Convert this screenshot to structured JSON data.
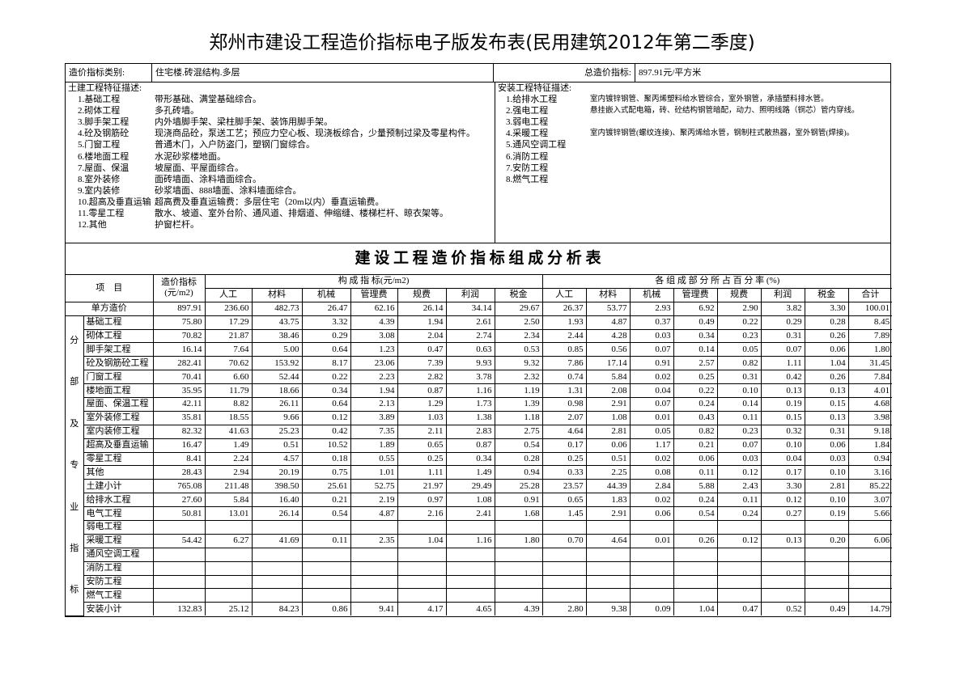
{
  "title": "郑州市建设工程造价指标电子版发布表(民用建筑2012年第二季度)",
  "info": {
    "category_label": "造价指标类别:",
    "category": "住宅楼.砖混结构.多层",
    "total_label": "总造价指标:",
    "total": "897.91元/平方米"
  },
  "civil_features": {
    "heading": "土建工程特征描述:",
    "items": [
      {
        "name": "1.基础工程",
        "desc": "带形基础、满堂基础综合。"
      },
      {
        "name": "2.砌体工程",
        "desc": "多孔砖墙。"
      },
      {
        "name": "3.脚手架工程",
        "desc": "内外墙脚手架、梁柱脚手架、装饰用脚手架。"
      },
      {
        "name": "4.砼及钢筋砼",
        "desc": "现浇商品砼，泵送工艺；预应力空心板、现浇板综合，少量预制过梁及零星构件。"
      },
      {
        "name": "5.门窗工程",
        "desc": "普通木门，入户防盗门，塑钢门窗综合。"
      },
      {
        "name": "6.楼地面工程",
        "desc": "水泥砂浆楼地面。"
      },
      {
        "name": "7.屋面、保温",
        "desc": "坡屋面、平屋面综合。"
      },
      {
        "name": "8.室外装修",
        "desc": "面砖墙面、涂料墙面综合。"
      },
      {
        "name": "9.室内装修",
        "desc": "砂浆墙面、888墙面、涂料墙面综合。"
      },
      {
        "name": "10.超高及垂直运输",
        "desc": "超高费及垂直运输费：多层住宅（20m以内）垂直运输费。"
      },
      {
        "name": "11.零星工程",
        "desc": "散水、坡道、室外台阶、通风道、排烟道、伸缩缝、楼梯栏杆、晾衣架等。"
      },
      {
        "name": "12.其他",
        "desc": "护窗栏杆。"
      }
    ]
  },
  "install_features": {
    "heading": "安装工程特征描述:",
    "items": [
      {
        "name": "1.给排水工程",
        "desc": "室内镀锌钢管、聚丙烯塑料给水管综合，室外钢管，承插塑料排水管。"
      },
      {
        "name": "2.强电工程",
        "desc": "悬挂嵌入式配电箱，砖、砼结构钢管暗配，动力、照明线路（铜芯）管内穿线。"
      },
      {
        "name": "3.弱电工程"
      },
      {
        "name": "4.采暖工程",
        "desc": "室内镀锌钢管(螺纹连接)、聚丙烯给水管，钢制柱式散热器，室外钢管(焊接)。"
      },
      {
        "name": "5.通风空调工程"
      },
      {
        "name": "6.消防工程"
      },
      {
        "name": "7.安防工程"
      },
      {
        "name": "8.燃气工程"
      }
    ]
  },
  "analysis_table": {
    "title": "建 设 工 程 造 价 指 标 组 成 分 析 表",
    "item_header": "项　目",
    "index_header": [
      "造价指标",
      "(元/m2)"
    ],
    "composition_header": "构 成 指 标(元/m2)",
    "percent_header": "各 组 成 部 分 所 占 百 分 率 (%)",
    "composition_columns": [
      "人工",
      "材料",
      "机械",
      "管理费",
      "规费",
      "利润",
      "税金"
    ],
    "percent_columns": [
      "人工",
      "材料",
      "机械",
      "管理费",
      "规费",
      "利润",
      "税金",
      "合计"
    ],
    "side_label": [
      "分",
      "部",
      "及",
      "专",
      "业",
      "指",
      "标"
    ],
    "rows": [
      {
        "name": "单方造价",
        "cells": [
          "897.91",
          "236.60",
          "482.73",
          "26.47",
          "62.16",
          "26.14",
          "34.14",
          "29.67",
          "26.37",
          "53.77",
          "2.93",
          "6.92",
          "2.90",
          "3.82",
          "3.30",
          "100.01"
        ]
      },
      {
        "name": "基础工程",
        "cells": [
          "75.80",
          "17.29",
          "43.75",
          "3.32",
          "4.39",
          "1.94",
          "2.61",
          "2.50",
          "1.93",
          "4.87",
          "0.37",
          "0.49",
          "0.22",
          "0.29",
          "0.28",
          "8.45"
        ]
      },
      {
        "name": "砌体工程",
        "cells": [
          "70.82",
          "21.87",
          "38.46",
          "0.29",
          "3.08",
          "2.04",
          "2.74",
          "2.34",
          "2.44",
          "4.28",
          "0.03",
          "0.34",
          "0.23",
          "0.31",
          "0.26",
          "7.89"
        ]
      },
      {
        "name": "脚手架工程",
        "cells": [
          "16.14",
          "7.64",
          "5.00",
          "0.64",
          "1.23",
          "0.47",
          "0.63",
          "0.53",
          "0.85",
          "0.56",
          "0.07",
          "0.14",
          "0.05",
          "0.07",
          "0.06",
          "1.80"
        ]
      },
      {
        "name": "砼及钢筋砼工程",
        "cells": [
          "282.41",
          "70.62",
          "153.92",
          "8.17",
          "23.06",
          "7.39",
          "9.93",
          "9.32",
          "7.86",
          "17.14",
          "0.91",
          "2.57",
          "0.82",
          "1.11",
          "1.04",
          "31.45"
        ]
      },
      {
        "name": "门窗工程",
        "cells": [
          "70.41",
          "6.60",
          "52.44",
          "0.22",
          "2.23",
          "2.82",
          "3.78",
          "2.32",
          "0.74",
          "5.84",
          "0.02",
          "0.25",
          "0.31",
          "0.42",
          "0.26",
          "7.84"
        ]
      },
      {
        "name": "楼地面工程",
        "cells": [
          "35.95",
          "11.79",
          "18.66",
          "0.34",
          "1.94",
          "0.87",
          "1.16",
          "1.19",
          "1.31",
          "2.08",
          "0.04",
          "0.22",
          "0.10",
          "0.13",
          "0.13",
          "4.01"
        ]
      },
      {
        "name": "屋面、保温工程",
        "cells": [
          "42.11",
          "8.82",
          "26.11",
          "0.64",
          "2.13",
          "1.29",
          "1.73",
          "1.39",
          "0.98",
          "2.91",
          "0.07",
          "0.24",
          "0.14",
          "0.19",
          "0.15",
          "4.68"
        ]
      },
      {
        "name": "室外装修工程",
        "cells": [
          "35.81",
          "18.55",
          "9.66",
          "0.12",
          "3.89",
          "1.03",
          "1.38",
          "1.18",
          "2.07",
          "1.08",
          "0.01",
          "0.43",
          "0.11",
          "0.15",
          "0.13",
          "3.98"
        ]
      },
      {
        "name": "室内装修工程",
        "cells": [
          "82.32",
          "41.63",
          "25.23",
          "0.42",
          "7.35",
          "2.11",
          "2.83",
          "2.75",
          "4.64",
          "2.81",
          "0.05",
          "0.82",
          "0.23",
          "0.32",
          "0.31",
          "9.18"
        ]
      },
      {
        "name": "超高及垂直运输",
        "cells": [
          "16.47",
          "1.49",
          "0.51",
          "10.52",
          "1.89",
          "0.65",
          "0.87",
          "0.54",
          "0.17",
          "0.06",
          "1.17",
          "0.21",
          "0.07",
          "0.10",
          "0.06",
          "1.84"
        ]
      },
      {
        "name": "零星工程",
        "cells": [
          "8.41",
          "2.24",
          "4.57",
          "0.18",
          "0.55",
          "0.25",
          "0.34",
          "0.28",
          "0.25",
          "0.51",
          "0.02",
          "0.06",
          "0.03",
          "0.04",
          "0.03",
          "0.94"
        ]
      },
      {
        "name": "其他",
        "cells": [
          "28.43",
          "2.94",
          "20.19",
          "0.75",
          "1.01",
          "1.11",
          "1.49",
          "0.94",
          "0.33",
          "2.25",
          "0.08",
          "0.11",
          "0.12",
          "0.17",
          "0.10",
          "3.16"
        ]
      },
      {
        "name": "土建小计",
        "cells": [
          "765.08",
          "211.48",
          "398.50",
          "25.61",
          "52.75",
          "21.97",
          "29.49",
          "25.28",
          "23.57",
          "44.39",
          "2.84",
          "5.88",
          "2.43",
          "3.30",
          "2.81",
          "85.22"
        ]
      },
      {
        "name": "给排水工程",
        "cells": [
          "27.60",
          "5.84",
          "16.40",
          "0.21",
          "2.19",
          "0.97",
          "1.08",
          "0.91",
          "0.65",
          "1.83",
          "0.02",
          "0.24",
          "0.11",
          "0.12",
          "0.10",
          "3.07"
        ]
      },
      {
        "name": "电气工程",
        "cells": [
          "50.81",
          "13.01",
          "26.14",
          "0.54",
          "4.87",
          "2.16",
          "2.41",
          "1.68",
          "1.45",
          "2.91",
          "0.06",
          "0.54",
          "0.24",
          "0.27",
          "0.19",
          "5.66"
        ]
      },
      {
        "name": "弱电工程"
      },
      {
        "name": "采暖工程",
        "cells": [
          "54.42",
          "6.27",
          "41.69",
          "0.11",
          "2.35",
          "1.04",
          "1.16",
          "1.80",
          "0.70",
          "4.64",
          "0.01",
          "0.26",
          "0.12",
          "0.13",
          "0.20",
          "6.06"
        ]
      },
      {
        "name": "通风空调工程"
      },
      {
        "name": "消防工程"
      },
      {
        "name": "安防工程"
      },
      {
        "name": "燃气工程"
      },
      {
        "name": "安装小计",
        "cells": [
          "132.83",
          "25.12",
          "84.23",
          "0.86",
          "9.41",
          "4.17",
          "4.65",
          "4.39",
          "2.80",
          "9.38",
          "0.09",
          "1.04",
          "0.47",
          "0.52",
          "0.49",
          "14.79"
        ]
      }
    ]
  }
}
